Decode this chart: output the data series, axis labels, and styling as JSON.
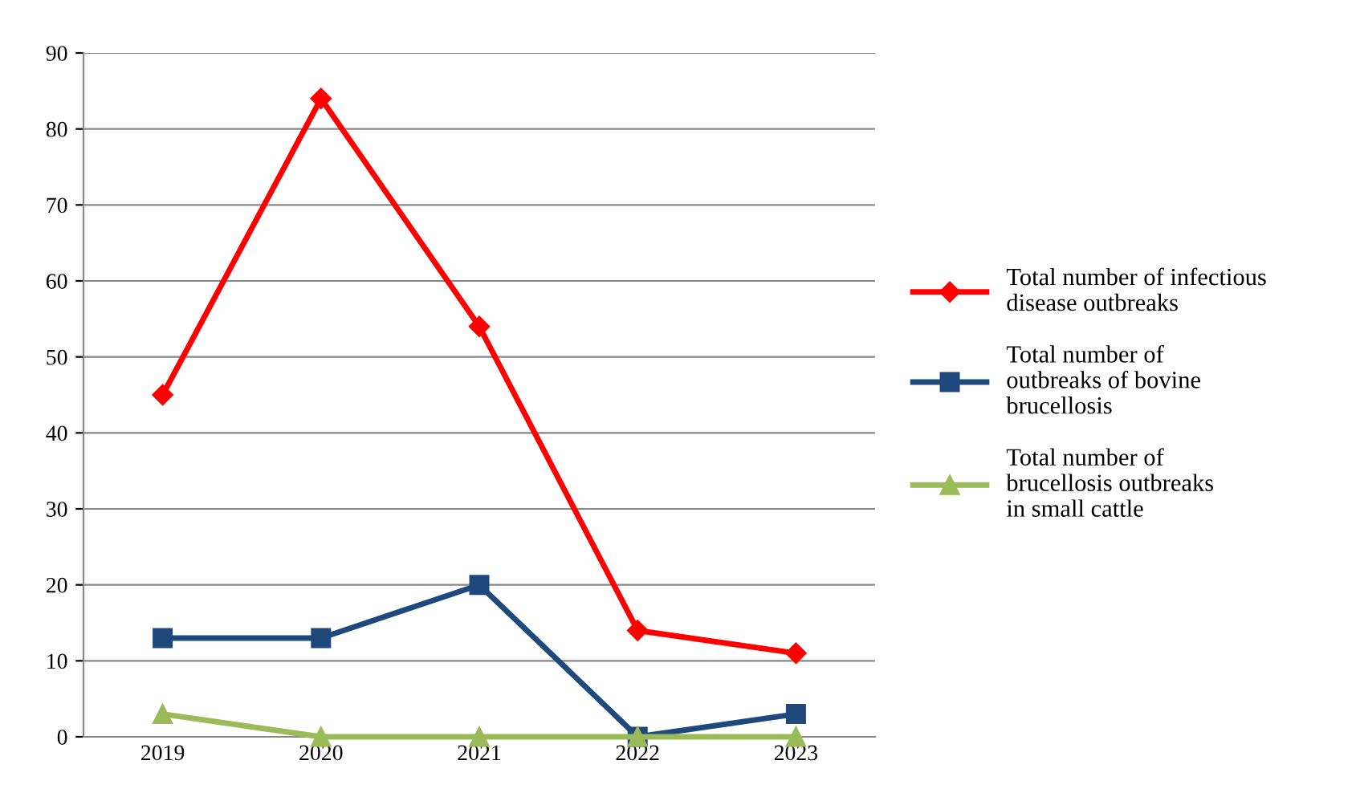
{
  "chart_data": {
    "type": "line",
    "categories": [
      "2019",
      "2020",
      "2021",
      "2022",
      "2023"
    ],
    "series": [
      {
        "name": "Total number of infectious\ndisease outbreaks",
        "color": "#ff0000",
        "marker": "diamond",
        "values": [
          45,
          84,
          54,
          14,
          11
        ]
      },
      {
        "name": "Total number of\noutbreaks of bovine\nbrucellosis",
        "color": "#1f497d",
        "marker": "square",
        "values": [
          13,
          13,
          20,
          0,
          3
        ]
      },
      {
        "name": "Total number of\nbrucellosis outbreaks\nin small cattle",
        "color": "#9bbb59",
        "marker": "triangle",
        "values": [
          3,
          0,
          0,
          0,
          0
        ]
      }
    ],
    "ylim": [
      0,
      90
    ],
    "yticks": [
      0,
      10,
      20,
      30,
      40,
      50,
      60,
      70,
      80,
      90
    ],
    "grid": "y",
    "legend": "right"
  }
}
